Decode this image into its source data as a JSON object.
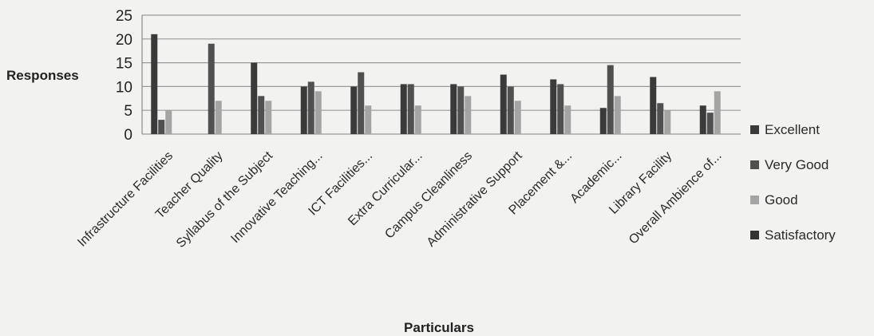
{
  "chart_data": {
    "type": "bar",
    "title": "",
    "xlabel": "Particulars",
    "ylabel": "Responses",
    "ylim": [
      0,
      25
    ],
    "yticks": [
      0,
      5,
      10,
      15,
      20,
      25
    ],
    "grid": true,
    "legend_position": "right",
    "categories": [
      "Infrastructure Facilities",
      "Teacher Quality",
      "Syllabus of the Subject",
      "Innovative Teaching...",
      "ICT Facilities...",
      "Extra Curricular...",
      "Campus Cleanliness",
      "Administrative Support",
      "Placement &...",
      "Academic...",
      "Library Facility",
      "Overall Ambience of..."
    ],
    "series": [
      {
        "name": "Excellent",
        "color": "#3a3a3a",
        "values": [
          21,
          0,
          15,
          10,
          10,
          10.5,
          10.5,
          12.5,
          11.5,
          5.5,
          12,
          6
        ]
      },
      {
        "name": "Very Good",
        "color": "#505050",
        "values": [
          3,
          19,
          8,
          11,
          13,
          10.5,
          10,
          10,
          10.5,
          14.5,
          6.5,
          4.5
        ]
      },
      {
        "name": "Good",
        "color": "#a4a4a4",
        "values": [
          5,
          7,
          7,
          9,
          6,
          6,
          8,
          7,
          6,
          8,
          5,
          9
        ]
      },
      {
        "name": "Satisfactory",
        "color": "#333333",
        "values": [
          0,
          0,
          0,
          0,
          0,
          0,
          0,
          0,
          0,
          0,
          0,
          0
        ]
      }
    ]
  }
}
